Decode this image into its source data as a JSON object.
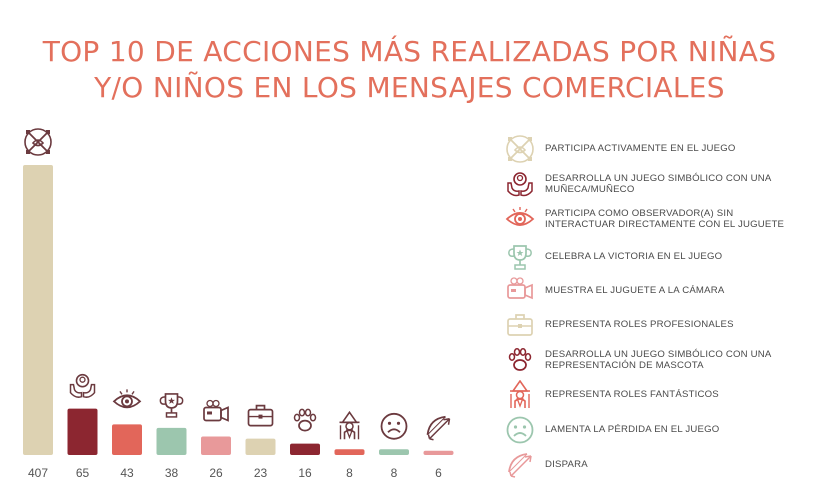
{
  "title": {
    "line1": "TOP 10 DE ACCIONES MÁS REALIZADAS POR NIÑAS",
    "line2": "Y/O NIÑOS EN LOS MENSAJES COMERCIALES"
  },
  "chart_data": {
    "type": "bar",
    "categories": [
      "PARTICIPA ACTIVAMENTE EN EL JUEGO",
      "DESARROLLA UN JUEGO SIMBÓLICO CON UNA MUÑECA/MUÑECO",
      "PARTICIPA COMO OBSERVADOR(A) SIN INTERACTUAR DIRECTAMENTE CON EL JUGUETE",
      "CELEBRA LA VICTORIA EN EL JUEGO",
      "MUESTRA EL JUGUETE A LA CÁMARA",
      "REPRESENTA ROLES PROFESIONALES",
      "DESARROLLA UN JUEGO SIMBÓLICO CON UNA REPRESENTACIÓN DE MASCOTA",
      "REPRESENTA ROLES FANTÁSTICOS",
      "LAMENTA LA PÉRDIDA EN EL JUEGO",
      "DISPARA"
    ],
    "values": [
      407,
      65,
      43,
      38,
      26,
      23,
      16,
      8,
      8,
      6
    ],
    "colors": [
      "#ddd2b2",
      "#8c2630",
      "#e2665a",
      "#9cc6ae",
      "#e8999a",
      "#ddd2b2",
      "#8c2630",
      "#e2665a",
      "#9cc6ae",
      "#e8999a"
    ],
    "icons": [
      "hands-cross-icon",
      "hands-doll-icon",
      "eye-icon",
      "trophy-icon",
      "camera-icon",
      "briefcase-icon",
      "paw-icon",
      "wizard-icon",
      "sad-face-icon",
      "bow-arrow-icon"
    ],
    "legend_placement": "right",
    "grid": false
  },
  "legend": {
    "items": [
      {
        "line1": "PARTICIPA ACTIVAMENTE EN EL JUEGO",
        "line2": "",
        "icon": "hands-cross-icon",
        "color": "#ddd2b2"
      },
      {
        "line1": "DESARROLLA UN JUEGO SIMBÓLICO CON UNA",
        "line2": "MUÑECA/MUÑECO",
        "icon": "hands-doll-icon",
        "color": "#8c2630"
      },
      {
        "line1": "PARTICIPA COMO OBSERVADOR(A) SIN",
        "line2": "INTERACTUAR DIRECTAMENTE CON EL JUGUETE",
        "icon": "eye-icon",
        "color": "#e2665a"
      },
      {
        "line1": "CELEBRA LA VICTORIA EN EL JUEGO",
        "line2": "",
        "icon": "trophy-icon",
        "color": "#9cc6ae"
      },
      {
        "line1": "MUESTRA EL JUGUETE A LA CÁMARA",
        "line2": "",
        "icon": "camera-icon",
        "color": "#e8999a"
      },
      {
        "line1": "REPRESENTA ROLES PROFESIONALES",
        "line2": "",
        "icon": "briefcase-icon",
        "color": "#ddd2b2"
      },
      {
        "line1": "DESARROLLA UN JUEGO SIMBÓLICO CON UNA",
        "line2": "REPRESENTACIÓN DE MASCOTA",
        "icon": "paw-icon",
        "color": "#8c2630"
      },
      {
        "line1": "REPRESENTA ROLES FANTÁSTICOS",
        "line2": "",
        "icon": "wizard-icon",
        "color": "#e2665a"
      },
      {
        "line1": "LAMENTA LA PÉRDIDA EN EL JUEGO",
        "line2": "",
        "icon": "sad-face-icon",
        "color": "#9cc6ae"
      },
      {
        "line1": "DISPARA",
        "line2": "",
        "icon": "bow-arrow-icon",
        "color": "#e8999a"
      }
    ]
  }
}
